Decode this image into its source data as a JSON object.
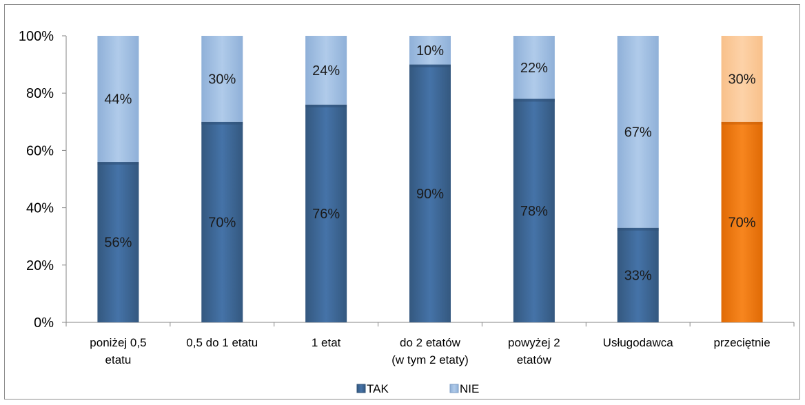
{
  "chart_data": {
    "type": "bar",
    "stacked": true,
    "percent": true,
    "categories": [
      [
        "poniżej 0,5",
        "etatu"
      ],
      [
        "0,5 do 1 etatu"
      ],
      [
        "1 etat"
      ],
      [
        "do 2 etatów",
        "(w tym 2 etaty)"
      ],
      [
        "powyżej 2",
        "etatów"
      ],
      [
        "Usługodawca"
      ],
      [
        "przeciętnie"
      ]
    ],
    "series": [
      {
        "name": "TAK",
        "values": [
          56,
          70,
          76,
          90,
          78,
          33,
          70
        ],
        "labels": [
          "56%",
          "70%",
          "76%",
          "90%",
          "78%",
          "33%",
          "70%"
        ]
      },
      {
        "name": "NIE",
        "values": [
          44,
          30,
          24,
          10,
          22,
          67,
          30
        ],
        "labels": [
          "44%",
          "30%",
          "24%",
          "10%",
          "22%",
          "67%",
          "30%"
        ]
      }
    ],
    "ylim": [
      0,
      100
    ],
    "yticks": [
      0,
      20,
      40,
      60,
      80,
      100
    ],
    "ytick_labels": [
      "0%",
      "20%",
      "40%",
      "60%",
      "80%",
      "100%"
    ],
    "grid": false,
    "legend": "bottom",
    "colors": {
      "TAK": "#3e6595",
      "NIE": "#9dbce1",
      "TAK_highlight": "#f07a12",
      "NIE_highlight": "#fbc895"
    },
    "highlight_category_index": 6
  }
}
